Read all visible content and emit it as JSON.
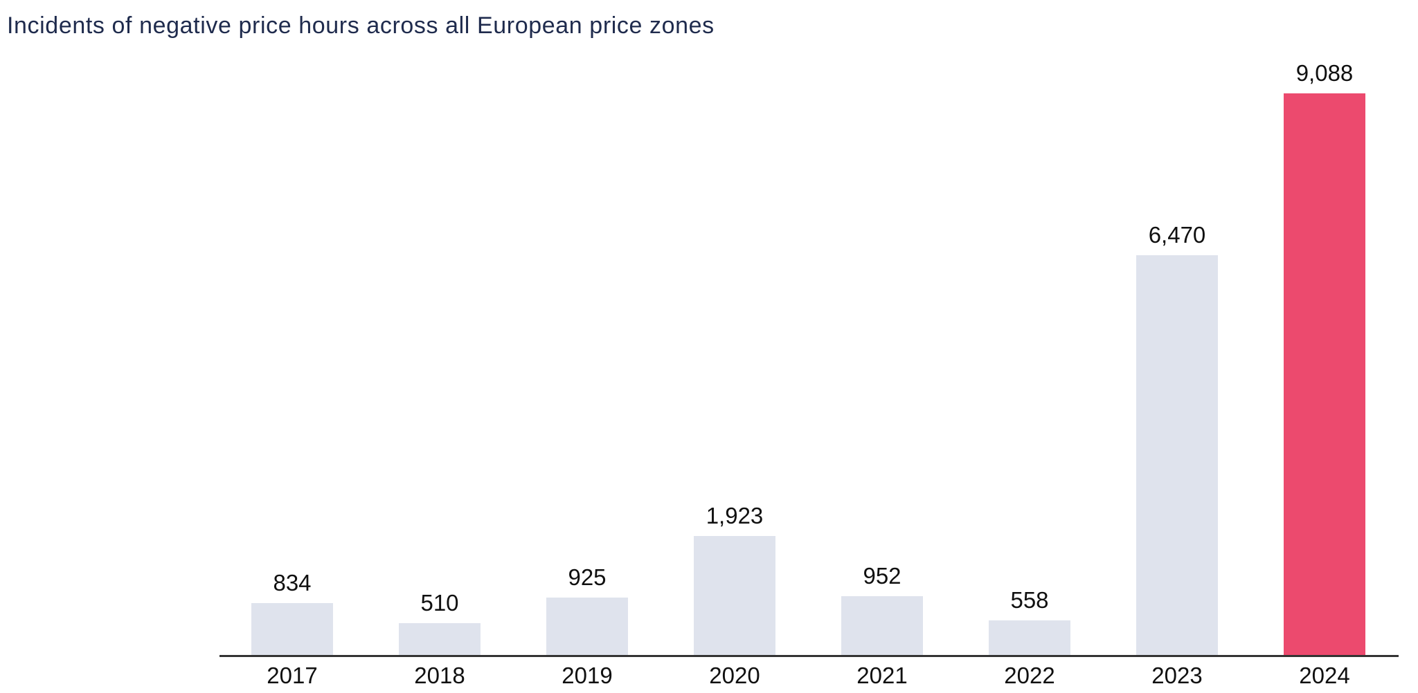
{
  "title": "Incidents of negative price hours across all European price zones",
  "colors": {
    "title": "#1f2b4d",
    "bar": "#dfe3ed",
    "highlight": "#ec4a6e",
    "axis": "#333333",
    "label": "#101010",
    "background": "#ffffff"
  },
  "chart_data": {
    "type": "bar",
    "title": "Incidents of negative price hours across all European price zones",
    "categories": [
      "2017",
      "2018",
      "2019",
      "2020",
      "2021",
      "2022",
      "2023",
      "2024"
    ],
    "values": [
      834,
      510,
      925,
      1923,
      952,
      558,
      6470,
      9088
    ],
    "value_labels": [
      "834",
      "510",
      "925",
      "1,923",
      "952",
      "558",
      "6,470",
      "9,088"
    ],
    "highlight_category": "2024",
    "highlight_index": 7,
    "xlabel": "",
    "ylabel": "",
    "ylim": [
      0,
      9088
    ],
    "grid": false,
    "legend": false,
    "baseline_axis": "x"
  }
}
